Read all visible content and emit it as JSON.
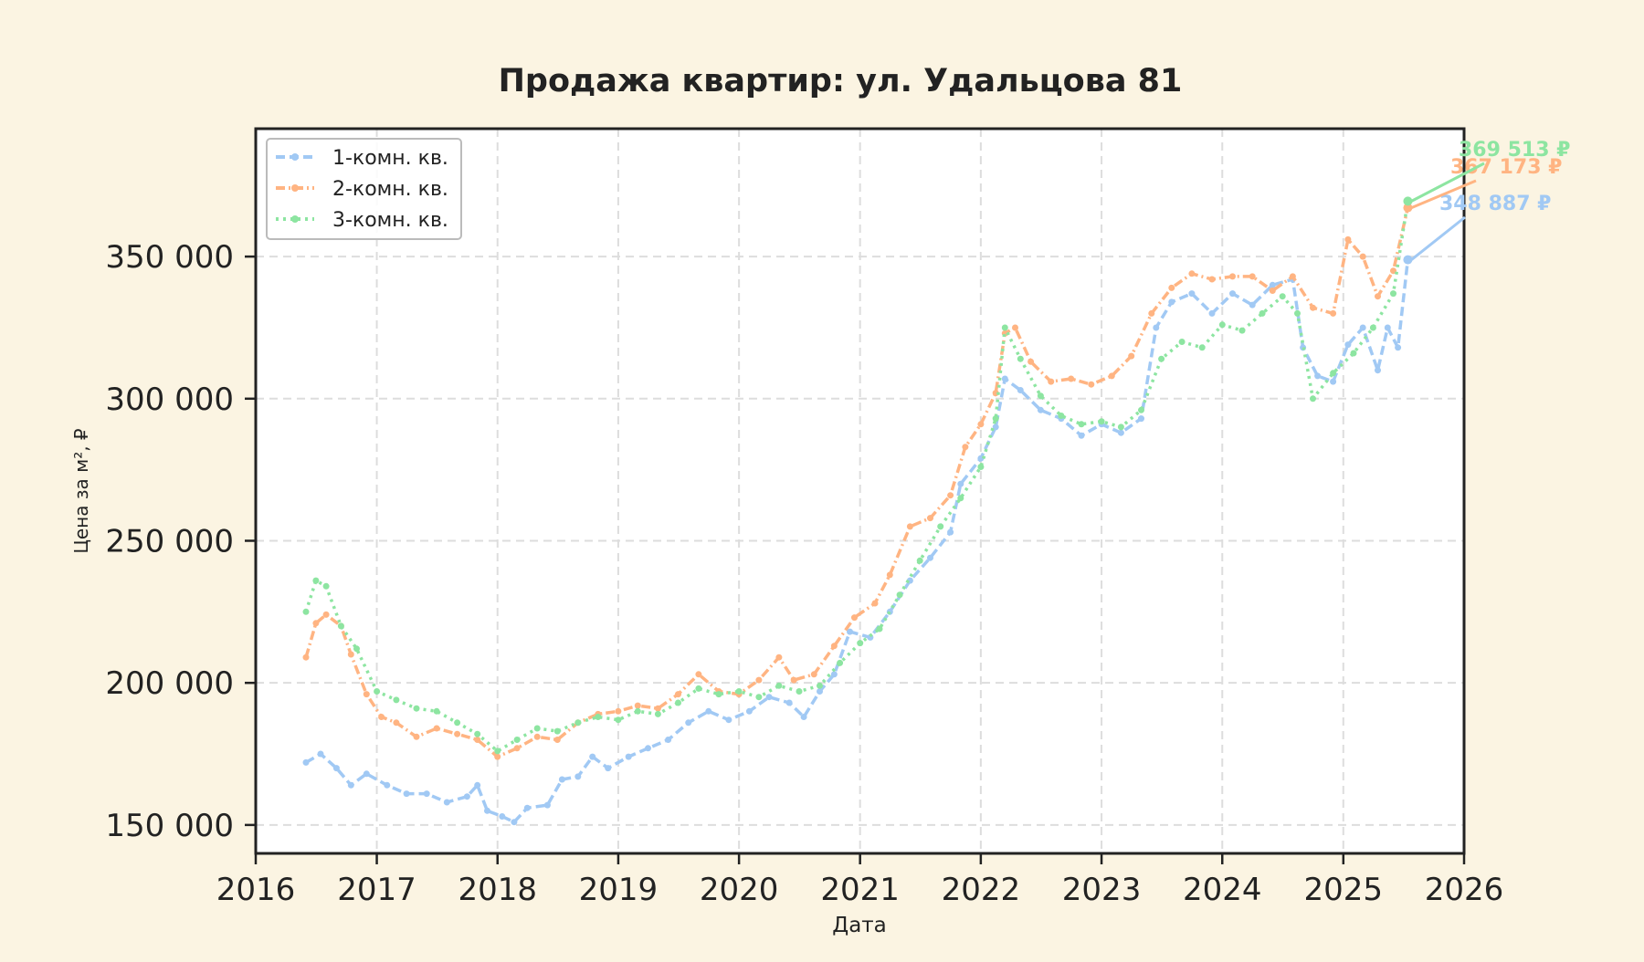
{
  "chart_data": {
    "type": "line",
    "title": "Продажа квартир: ул. Удальцова 81",
    "xlabel": "Дата",
    "ylabel": "Цена за м², ₽",
    "xlim": [
      "2016-01-01",
      "2026-01-01"
    ],
    "ylim": [
      140000,
      395000
    ],
    "grid": true,
    "legend_position": "top-left",
    "x_ticks": [
      "2016",
      "2017",
      "2018",
      "2019",
      "2020",
      "2021",
      "2022",
      "2023",
      "2024",
      "2025",
      "2026"
    ],
    "y_ticks": [
      {
        "value": 150000,
        "label": "150 000"
      },
      {
        "value": 200000,
        "label": "200 000"
      },
      {
        "value": 250000,
        "label": "250 000"
      },
      {
        "value": 300000,
        "label": "300 000"
      },
      {
        "value": 350000,
        "label": "350 000"
      }
    ],
    "series": [
      {
        "name": "1-комн. кв.",
        "color": "#a1c9f4",
        "dash": "10 5",
        "end_label": "348 887 ₽",
        "points": [
          [
            "2016-06-01",
            172000
          ],
          [
            "2016-07-15",
            175000
          ],
          [
            "2016-09-01",
            170000
          ],
          [
            "2016-10-15",
            164000
          ],
          [
            "2016-12-01",
            168000
          ],
          [
            "2017-02-01",
            164000
          ],
          [
            "2017-04-01",
            161000
          ],
          [
            "2017-06-01",
            161000
          ],
          [
            "2017-08-01",
            158000
          ],
          [
            "2017-10-01",
            160000
          ],
          [
            "2017-11-01",
            164000
          ],
          [
            "2017-12-01",
            155000
          ],
          [
            "2018-01-15",
            153000
          ],
          [
            "2018-02-20",
            151000
          ],
          [
            "2018-04-01",
            156000
          ],
          [
            "2018-06-01",
            157000
          ],
          [
            "2018-07-15",
            166000
          ],
          [
            "2018-09-01",
            167000
          ],
          [
            "2018-10-15",
            174000
          ],
          [
            "2018-12-01",
            170000
          ],
          [
            "2019-02-01",
            174000
          ],
          [
            "2019-04-01",
            177000
          ],
          [
            "2019-06-01",
            180000
          ],
          [
            "2019-08-01",
            186000
          ],
          [
            "2019-10-01",
            190000
          ],
          [
            "2019-12-01",
            187000
          ],
          [
            "2020-02-01",
            190000
          ],
          [
            "2020-04-01",
            195000
          ],
          [
            "2020-06-01",
            193000
          ],
          [
            "2020-07-15",
            188000
          ],
          [
            "2020-09-01",
            197000
          ],
          [
            "2020-10-15",
            203000
          ],
          [
            "2020-12-01",
            218000
          ],
          [
            "2021-02-01",
            216000
          ],
          [
            "2021-04-01",
            225000
          ],
          [
            "2021-06-01",
            236000
          ],
          [
            "2021-08-01",
            244000
          ],
          [
            "2021-10-01",
            253000
          ],
          [
            "2021-11-01",
            270000
          ],
          [
            "2022-01-01",
            279000
          ],
          [
            "2022-02-15",
            290000
          ],
          [
            "2022-03-15",
            307000
          ],
          [
            "2022-05-01",
            303000
          ],
          [
            "2022-07-01",
            296000
          ],
          [
            "2022-09-01",
            293000
          ],
          [
            "2022-11-01",
            287000
          ],
          [
            "2023-01-01",
            291000
          ],
          [
            "2023-03-01",
            288000
          ],
          [
            "2023-05-01",
            293000
          ],
          [
            "2023-06-15",
            325000
          ],
          [
            "2023-08-01",
            334000
          ],
          [
            "2023-10-01",
            337000
          ],
          [
            "2023-12-01",
            330000
          ],
          [
            "2024-02-01",
            337000
          ],
          [
            "2024-04-01",
            333000
          ],
          [
            "2024-06-01",
            340000
          ],
          [
            "2024-08-01",
            342000
          ],
          [
            "2024-09-01",
            318000
          ],
          [
            "2024-10-15",
            308000
          ],
          [
            "2024-12-01",
            306000
          ],
          [
            "2025-01-15",
            319000
          ],
          [
            "2025-03-01",
            325000
          ],
          [
            "2025-04-15",
            310000
          ],
          [
            "2025-05-15",
            325000
          ],
          [
            "2025-06-15",
            318000
          ],
          [
            "2025-07-15",
            348887
          ]
        ]
      },
      {
        "name": "2-комн. кв.",
        "color": "#ffb482",
        "dash": "10 4 2 4",
        "end_label": "367 173 ₽",
        "points": [
          [
            "2016-06-01",
            209000
          ],
          [
            "2016-07-01",
            221000
          ],
          [
            "2016-08-01",
            224000
          ],
          [
            "2016-09-15",
            220000
          ],
          [
            "2016-10-15",
            210000
          ],
          [
            "2016-12-01",
            196000
          ],
          [
            "2017-01-15",
            188000
          ],
          [
            "2017-03-01",
            186000
          ],
          [
            "2017-05-01",
            181000
          ],
          [
            "2017-07-01",
            184000
          ],
          [
            "2017-09-01",
            182000
          ],
          [
            "2017-11-01",
            180000
          ],
          [
            "2018-01-01",
            174000
          ],
          [
            "2018-03-01",
            177000
          ],
          [
            "2018-05-01",
            181000
          ],
          [
            "2018-07-01",
            180000
          ],
          [
            "2018-09-01",
            186000
          ],
          [
            "2018-11-01",
            189000
          ],
          [
            "2019-01-01",
            190000
          ],
          [
            "2019-03-01",
            192000
          ],
          [
            "2019-05-01",
            191000
          ],
          [
            "2019-07-01",
            196000
          ],
          [
            "2019-09-01",
            203000
          ],
          [
            "2019-11-01",
            197000
          ],
          [
            "2020-01-01",
            196000
          ],
          [
            "2020-03-01",
            201000
          ],
          [
            "2020-05-01",
            209000
          ],
          [
            "2020-06-15",
            201000
          ],
          [
            "2020-08-15",
            203000
          ],
          [
            "2020-10-15",
            213000
          ],
          [
            "2020-12-15",
            223000
          ],
          [
            "2021-02-15",
            228000
          ],
          [
            "2021-04-01",
            238000
          ],
          [
            "2021-06-01",
            255000
          ],
          [
            "2021-08-01",
            258000
          ],
          [
            "2021-10-01",
            266000
          ],
          [
            "2021-11-15",
            283000
          ],
          [
            "2022-01-01",
            291000
          ],
          [
            "2022-02-15",
            302000
          ],
          [
            "2022-03-15",
            323000
          ],
          [
            "2022-04-15",
            325000
          ],
          [
            "2022-06-01",
            313000
          ],
          [
            "2022-08-01",
            306000
          ],
          [
            "2022-10-01",
            307000
          ],
          [
            "2022-12-01",
            305000
          ],
          [
            "2023-02-01",
            308000
          ],
          [
            "2023-04-01",
            315000
          ],
          [
            "2023-06-01",
            330000
          ],
          [
            "2023-08-01",
            339000
          ],
          [
            "2023-10-01",
            344000
          ],
          [
            "2023-12-01",
            342000
          ],
          [
            "2024-02-01",
            343000
          ],
          [
            "2024-04-01",
            343000
          ],
          [
            "2024-06-01",
            338000
          ],
          [
            "2024-08-01",
            343000
          ],
          [
            "2024-10-01",
            332000
          ],
          [
            "2024-12-01",
            330000
          ],
          [
            "2025-01-15",
            356000
          ],
          [
            "2025-03-01",
            350000
          ],
          [
            "2025-04-15",
            336000
          ],
          [
            "2025-06-01",
            345000
          ],
          [
            "2025-07-15",
            367173
          ]
        ]
      },
      {
        "name": "3-комн. кв.",
        "color": "#8de5a1",
        "dash": "3 5",
        "end_label": "369 513 ₽",
        "points": [
          [
            "2016-06-01",
            225000
          ],
          [
            "2016-07-01",
            236000
          ],
          [
            "2016-08-01",
            234000
          ],
          [
            "2016-09-15",
            220000
          ],
          [
            "2016-11-01",
            212000
          ],
          [
            "2017-01-01",
            197000
          ],
          [
            "2017-03-01",
            194000
          ],
          [
            "2017-05-01",
            191000
          ],
          [
            "2017-07-01",
            190000
          ],
          [
            "2017-09-01",
            186000
          ],
          [
            "2017-11-01",
            182000
          ],
          [
            "2018-01-01",
            176000
          ],
          [
            "2018-03-01",
            180000
          ],
          [
            "2018-05-01",
            184000
          ],
          [
            "2018-07-01",
            183000
          ],
          [
            "2018-09-01",
            186000
          ],
          [
            "2018-11-01",
            188000
          ],
          [
            "2019-01-01",
            187000
          ],
          [
            "2019-03-01",
            190000
          ],
          [
            "2019-05-01",
            189000
          ],
          [
            "2019-07-01",
            193000
          ],
          [
            "2019-09-01",
            198000
          ],
          [
            "2019-11-01",
            196000
          ],
          [
            "2020-01-01",
            197000
          ],
          [
            "2020-03-01",
            195000
          ],
          [
            "2020-05-01",
            199000
          ],
          [
            "2020-07-01",
            197000
          ],
          [
            "2020-09-01",
            199000
          ],
          [
            "2020-11-01",
            207000
          ],
          [
            "2021-01-01",
            214000
          ],
          [
            "2021-03-01",
            219000
          ],
          [
            "2021-05-01",
            231000
          ],
          [
            "2021-07-01",
            243000
          ],
          [
            "2021-09-01",
            255000
          ],
          [
            "2021-11-01",
            265000
          ],
          [
            "2022-01-01",
            276000
          ],
          [
            "2022-02-15",
            293000
          ],
          [
            "2022-03-15",
            325000
          ],
          [
            "2022-05-01",
            314000
          ],
          [
            "2022-07-01",
            301000
          ],
          [
            "2022-09-01",
            294000
          ],
          [
            "2022-11-01",
            291000
          ],
          [
            "2023-01-01",
            292000
          ],
          [
            "2023-03-01",
            290000
          ],
          [
            "2023-05-01",
            296000
          ],
          [
            "2023-07-01",
            314000
          ],
          [
            "2023-09-01",
            320000
          ],
          [
            "2023-11-01",
            318000
          ],
          [
            "2024-01-01",
            326000
          ],
          [
            "2024-03-01",
            324000
          ],
          [
            "2024-05-01",
            330000
          ],
          [
            "2024-07-01",
            336000
          ],
          [
            "2024-08-15",
            330000
          ],
          [
            "2024-10-01",
            300000
          ],
          [
            "2024-12-01",
            309000
          ],
          [
            "2025-02-01",
            316000
          ],
          [
            "2025-04-01",
            325000
          ],
          [
            "2025-06-01",
            337000
          ],
          [
            "2025-07-15",
            369513
          ]
        ]
      }
    ]
  }
}
